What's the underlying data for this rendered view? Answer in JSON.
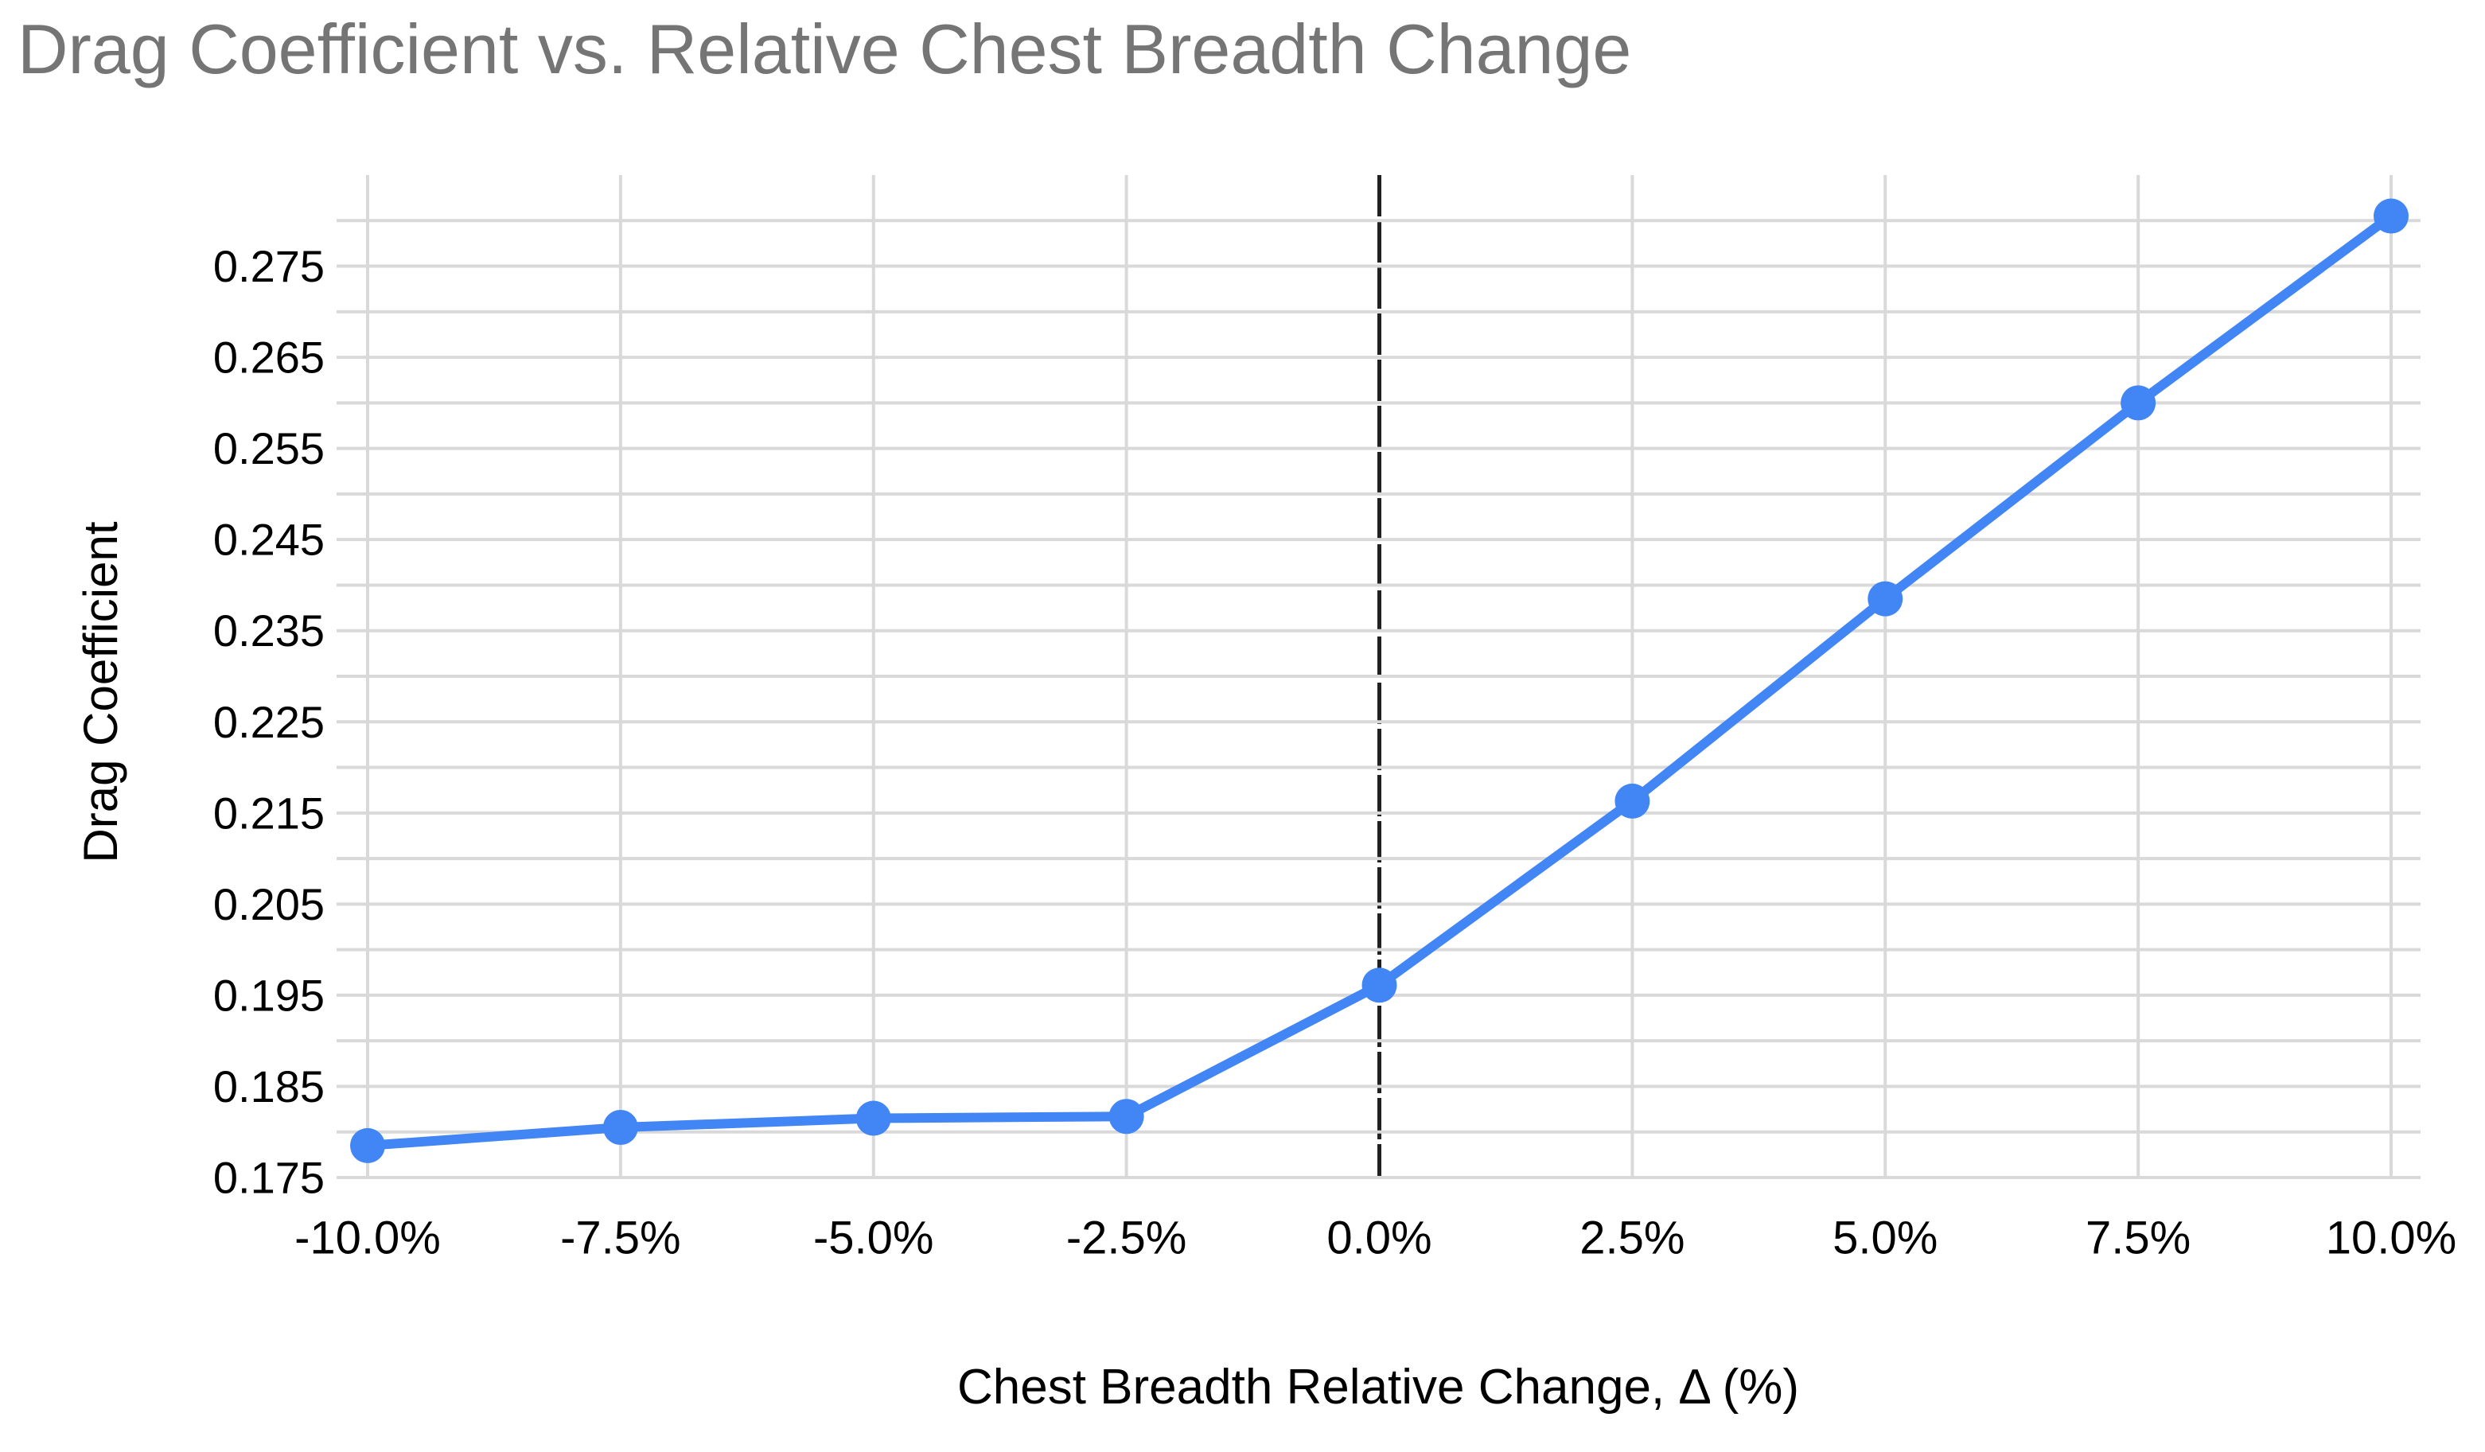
{
  "page": {
    "background": "#ffffff"
  },
  "chart_data": {
    "type": "line",
    "title": "Drag Coefficient vs. Relative Chest Breadth Change",
    "xlabel": "Chest Breadth Relative Change, Δ (%)",
    "ylabel": "Drag Coefficient",
    "x": [
      -10,
      -7.5,
      -5,
      -2.5,
      0,
      2.5,
      5,
      7.5,
      10
    ],
    "x_tick_labels": [
      "-10.0%",
      "-7.5%",
      "-5.0%",
      "-2.5%",
      "0.0%",
      "2.5%",
      "5.0%",
      "7.5%",
      "10.0%"
    ],
    "series": [
      {
        "name": "Drag Coefficient",
        "values": [
          0.1785,
          0.1805,
          0.1815,
          0.1817,
          0.1961,
          0.2163,
          0.2385,
          0.26,
          0.2805
        ]
      }
    ],
    "y_axis": {
      "min": 0.175,
      "max": 0.285,
      "minor_step": 0.005,
      "tick_values": [
        0.175,
        0.185,
        0.195,
        0.205,
        0.215,
        0.225,
        0.235,
        0.245,
        0.255,
        0.265,
        0.275
      ],
      "tick_labels": [
        "0.175",
        "0.185",
        "0.195",
        "0.205",
        "0.215",
        "0.225",
        "0.235",
        "0.245",
        "0.255",
        "0.265",
        "0.275"
      ]
    },
    "x_axis": {
      "min": -10,
      "max": 10,
      "tick_step": 2.5
    },
    "reference_line": {
      "x": 0,
      "style": "dashed"
    },
    "grid": true,
    "legend": "none",
    "colors": {
      "series": "#4285f4",
      "grid": "#d9d9d9",
      "reference_line": "#212121",
      "title": "#757575",
      "axis_text": "#000000"
    }
  }
}
